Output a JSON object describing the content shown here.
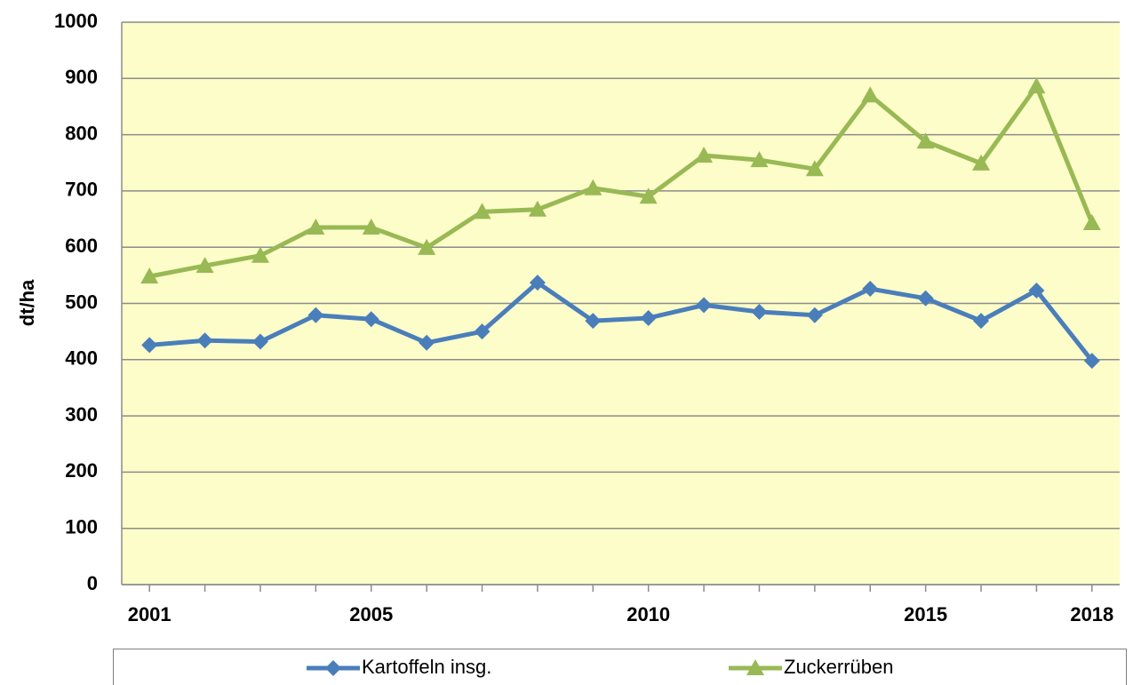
{
  "chart_data": {
    "type": "line",
    "y_label": "dt/ha",
    "categories": [
      "2001",
      null,
      null,
      null,
      "2005",
      null,
      null,
      null,
      null,
      "2010",
      null,
      null,
      null,
      null,
      "2015",
      null,
      null,
      "2018"
    ],
    "series": [
      {
        "name": "Kartoffeln insg.",
        "color": "#4a7ebb",
        "marker": "diamond",
        "values": [
          426,
          434,
          432,
          479,
          472,
          430,
          450,
          537,
          469,
          474,
          497,
          485,
          479,
          526,
          509,
          469,
          523,
          398
        ]
      },
      {
        "name": "Zuckerrüben",
        "color": "#98b954",
        "marker": "triangle",
        "values": [
          548,
          567,
          585,
          635,
          635,
          599,
          663,
          667,
          705,
          690,
          763,
          755,
          739,
          870,
          788,
          749,
          886,
          643
        ]
      }
    ],
    "ylim": [
      0,
      1000
    ],
    "yticks": [
      0,
      100,
      200,
      300,
      400,
      500,
      600,
      700,
      800,
      900,
      1000
    ],
    "grid": true,
    "legend": "bottom"
  }
}
